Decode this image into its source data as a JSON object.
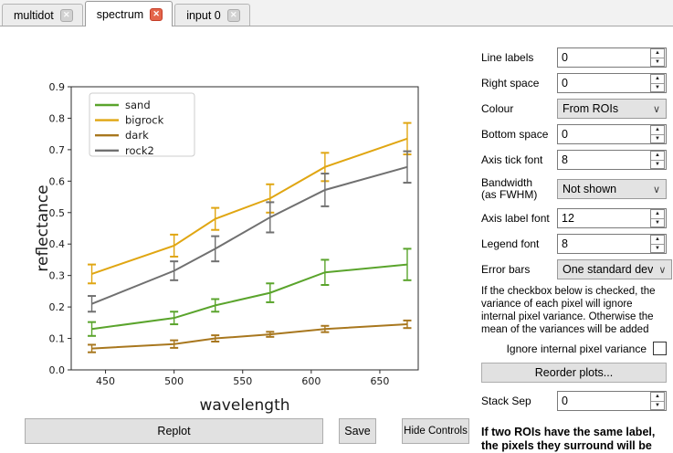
{
  "tabs": [
    {
      "label": "multidot",
      "active": false
    },
    {
      "label": "spectrum",
      "active": true
    },
    {
      "label": "input 0",
      "active": false
    }
  ],
  "icons": {
    "tab_close": "✕",
    "spin_up": "▲",
    "spin_down": "▼",
    "combo_chevron": "∨"
  },
  "chart_data": {
    "type": "line",
    "title": "",
    "xlabel": "wavelength",
    "ylabel": "reflectance",
    "x": [
      440,
      500,
      530,
      570,
      610,
      670
    ],
    "xlim": [
      425,
      678
    ],
    "ylim": [
      0.0,
      0.9
    ],
    "xticks": [
      450,
      500,
      550,
      600,
      650
    ],
    "yticks": [
      0.0,
      0.1,
      0.2,
      0.3,
      0.4,
      0.5,
      0.6,
      0.7,
      0.8,
      0.9
    ],
    "grid": false,
    "legend_position": "upper left",
    "error_bars": "one standard deviation",
    "series": [
      {
        "name": "sand",
        "color": "#5aa42c",
        "values": [
          0.13,
          0.165,
          0.205,
          0.245,
          0.31,
          0.335
        ],
        "errors": [
          0.022,
          0.02,
          0.02,
          0.03,
          0.04,
          0.05
        ]
      },
      {
        "name": "bigrock",
        "color": "#e0a612",
        "values": [
          0.305,
          0.395,
          0.48,
          0.545,
          0.645,
          0.735
        ],
        "errors": [
          0.03,
          0.035,
          0.035,
          0.045,
          0.045,
          0.05
        ]
      },
      {
        "name": "dark",
        "color": "#a8771e",
        "values": [
          0.068,
          0.082,
          0.1,
          0.113,
          0.13,
          0.145
        ],
        "errors": [
          0.012,
          0.012,
          0.01,
          0.008,
          0.01,
          0.012
        ]
      },
      {
        "name": "rock2",
        "color": "#707070",
        "values": [
          0.21,
          0.315,
          0.385,
          0.485,
          0.572,
          0.645
        ],
        "errors": [
          0.025,
          0.03,
          0.04,
          0.048,
          0.052,
          0.05
        ]
      }
    ]
  },
  "controls": {
    "rows": [
      {
        "type": "spin",
        "label": "Line labels",
        "value": "0"
      },
      {
        "type": "spin",
        "label": "Right space",
        "value": "0"
      },
      {
        "type": "combo",
        "label": "Colour",
        "value": "From ROIs"
      },
      {
        "type": "spin",
        "label": "Bottom space",
        "value": "0"
      },
      {
        "type": "spin",
        "label": "Axis tick font",
        "value": "8"
      },
      {
        "type": "combo",
        "label": "Bandwidth",
        "label2": "(as FWHM)",
        "value": "Not shown"
      },
      {
        "type": "spin",
        "label": "Axis label font",
        "value": "12"
      },
      {
        "type": "spin",
        "label": "Legend font",
        "value": "8"
      },
      {
        "type": "combo",
        "label": "Error bars",
        "value": "One standard dev"
      }
    ],
    "help_text": "If the checkbox below is checked, the variance of each pixel will ignore internal pixel variance. Otherwise the mean of the variances will be added",
    "checkbox_label": "Ignore internal pixel variance",
    "checkbox_checked": false,
    "reorder_button": "Reorder plots...",
    "stack_sep": {
      "label": "Stack Sep",
      "value": "0"
    },
    "bold_note": "If two ROIs have the same label, the pixels they surround will be considered a single"
  },
  "bottom_bar": {
    "replot": "Replot",
    "save": "Save",
    "hide_controls": "Hide Controls"
  }
}
